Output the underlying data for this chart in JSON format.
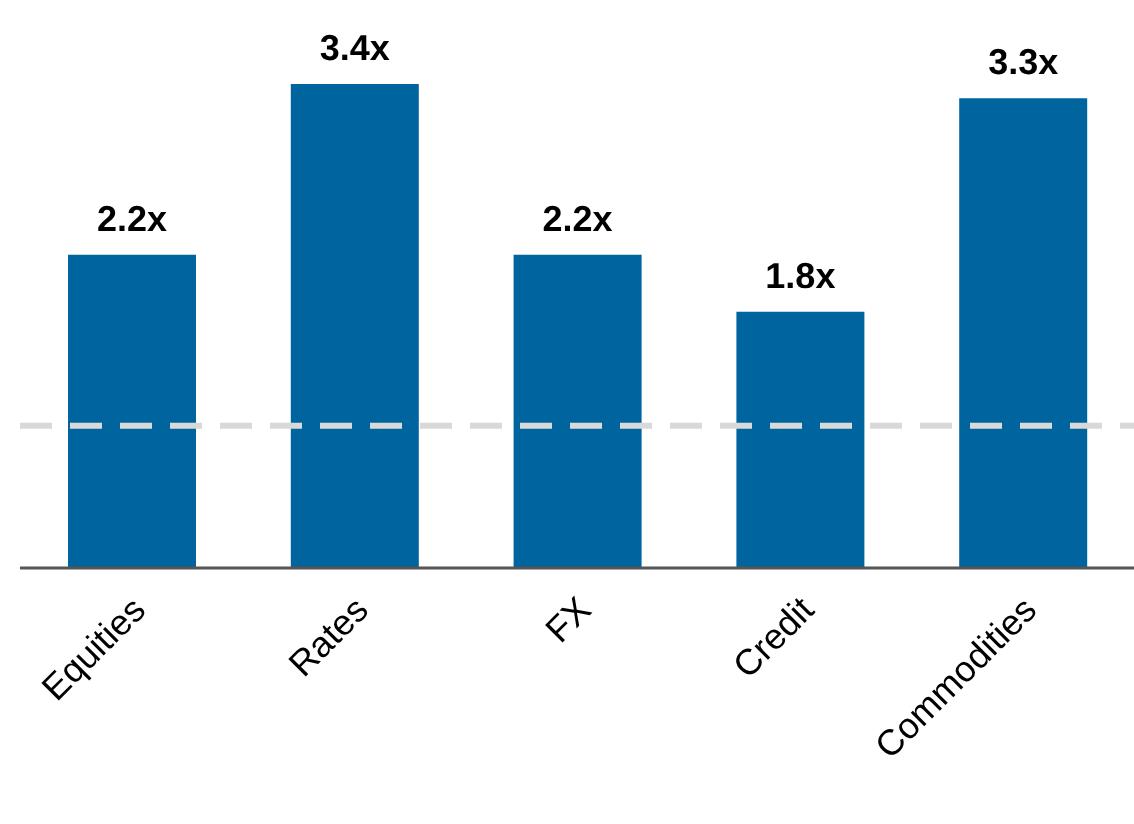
{
  "chart_data": {
    "type": "bar",
    "categories": [
      "Equities",
      "Rates",
      "FX",
      "Credit",
      "Commodities"
    ],
    "values": [
      2.2,
      3.4,
      2.2,
      1.8,
      3.3
    ],
    "value_labels": [
      "2.2x",
      "3.4x",
      "2.2x",
      "1.8x",
      "3.3x"
    ],
    "color": "#00649f",
    "tick_labels": "x",
    "ref_lines": [
      {
        "axis": "y",
        "value": 1,
        "color": "#d9d9d9",
        "line_style": "dashed"
      }
    ]
  }
}
